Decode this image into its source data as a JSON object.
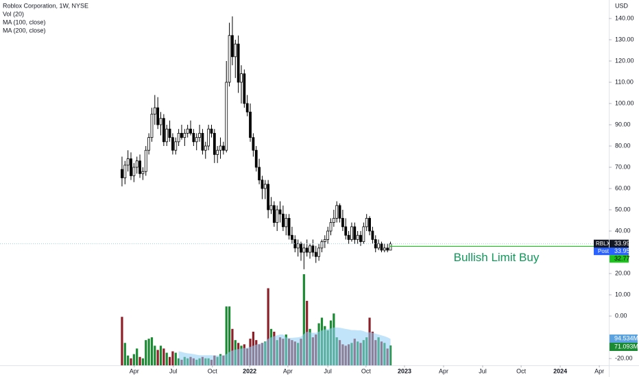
{
  "chart_data": {
    "type": "candlestick",
    "title": "Roblox Corporation, 1W, NYSE",
    "indicators": [
      "Vol (20)",
      "MA (100, close)",
      "MA (200, close)"
    ],
    "currency": "USD",
    "open": [
      69,
      65,
      71,
      74,
      66,
      70,
      73,
      67,
      68,
      78,
      84,
      95,
      98,
      90,
      93,
      82,
      88,
      84,
      78,
      82,
      86,
      84,
      86,
      88,
      86,
      82,
      84,
      86,
      78,
      80,
      88,
      86,
      76,
      78,
      80,
      78,
      110,
      132,
      122,
      128,
      110,
      114,
      100,
      96,
      84,
      78,
      70,
      64,
      60,
      62,
      50,
      52,
      44,
      50,
      48,
      42,
      46,
      38,
      36,
      32,
      34,
      30,
      32,
      30,
      33,
      30,
      28,
      32,
      35,
      36,
      40,
      44,
      46,
      52,
      46,
      42,
      38,
      36,
      42,
      36,
      38,
      35,
      42,
      46,
      40,
      36,
      32,
      34,
      31,
      32,
      31
    ],
    "high": [
      75,
      73,
      78,
      77,
      72,
      75,
      76,
      70,
      80,
      86,
      98,
      104,
      103,
      96,
      95,
      90,
      92,
      86,
      84,
      88,
      90,
      88,
      90,
      92,
      88,
      86,
      90,
      88,
      82,
      90,
      90,
      88,
      80,
      84,
      82,
      120,
      138,
      141,
      130,
      132,
      118,
      116,
      104,
      100,
      86,
      80,
      74,
      66,
      64,
      64,
      56,
      54,
      52,
      54,
      52,
      48,
      48,
      42,
      38,
      36,
      35,
      34,
      36,
      34,
      36,
      33,
      34,
      36,
      38,
      42,
      46,
      50,
      54,
      53,
      50,
      46,
      40,
      44,
      44,
      40,
      40,
      44,
      48,
      47,
      42,
      38,
      36,
      35,
      34,
      34,
      35
    ],
    "low": [
      61,
      62,
      68,
      64,
      63,
      67,
      65,
      64,
      66,
      76,
      82,
      90,
      88,
      85,
      80,
      80,
      82,
      76,
      76,
      80,
      83,
      80,
      84,
      85,
      80,
      78,
      82,
      76,
      74,
      78,
      84,
      72,
      72,
      74,
      76,
      77,
      108,
      118,
      112,
      105,
      100,
      98,
      94,
      82,
      75,
      68,
      62,
      55,
      55,
      46,
      48,
      42,
      40,
      44,
      40,
      38,
      36,
      34,
      30,
      28,
      26,
      22,
      28,
      27,
      28,
      25,
      26,
      30,
      32,
      34,
      38,
      42,
      44,
      44,
      40,
      36,
      34,
      35,
      34,
      34,
      33,
      34,
      40,
      38,
      34,
      30,
      31,
      30,
      30,
      30,
      31
    ],
    "close": [
      65,
      71,
      74,
      66,
      70,
      73,
      67,
      68,
      78,
      84,
      95,
      98,
      90,
      93,
      82,
      88,
      84,
      78,
      82,
      86,
      84,
      86,
      88,
      86,
      82,
      84,
      86,
      78,
      80,
      88,
      86,
      76,
      78,
      80,
      78,
      110,
      132,
      122,
      128,
      110,
      114,
      100,
      96,
      84,
      78,
      70,
      64,
      60,
      62,
      50,
      52,
      44,
      50,
      48,
      42,
      46,
      38,
      36,
      32,
      34,
      30,
      32,
      30,
      33,
      30,
      28,
      32,
      35,
      36,
      40,
      44,
      46,
      52,
      46,
      42,
      38,
      36,
      42,
      36,
      38,
      35,
      42,
      46,
      40,
      36,
      32,
      34,
      31,
      32,
      31,
      33.99
    ],
    "volume": [
      173,
      80,
      35,
      25,
      40,
      60,
      30,
      25,
      90,
      95,
      100,
      70,
      55,
      70,
      60,
      45,
      30,
      50,
      45,
      25,
      20,
      30,
      25,
      30,
      25,
      20,
      25,
      30,
      25,
      25,
      20,
      35,
      30,
      40,
      35,
      210,
      210,
      130,
      90,
      80,
      70,
      75,
      60,
      95,
      120,
      90,
      75,
      80,
      85,
      275,
      130,
      120,
      90,
      100,
      95,
      110,
      95,
      90,
      85,
      80,
      95,
      325,
      230,
      130,
      100,
      110,
      150,
      170,
      140,
      125,
      160,
      185,
      100,
      90,
      75,
      70,
      75,
      80,
      95,
      85,
      80,
      90,
      100,
      170,
      120,
      90,
      100,
      85,
      80,
      60,
      71.093
    ],
    "volume_ma": [
      null,
      null,
      null,
      null,
      null,
      null,
      null,
      null,
      null,
      null,
      null,
      null,
      null,
      null,
      null,
      null,
      null,
      null,
      null,
      50,
      48,
      45,
      43,
      42,
      40,
      38,
      36,
      36,
      36,
      36,
      36,
      35,
      35,
      35,
      35,
      40,
      48,
      53,
      56,
      58,
      60,
      62,
      63,
      66,
      70,
      74,
      77,
      80,
      83,
      95,
      100,
      104,
      107,
      110,
      110,
      100,
      98,
      98,
      99,
      100,
      102,
      112,
      120,
      118,
      116,
      116,
      120,
      125,
      128,
      130,
      132,
      135,
      135,
      134,
      132,
      130,
      128,
      126,
      126,
      125,
      125,
      122,
      118,
      118,
      117,
      113,
      110,
      107,
      104,
      100,
      94.534
    ],
    "volume_value_labels": {
      "volume": "71.093M",
      "volume_ma": "94.534M"
    },
    "volume_ylim": [
      0,
      330
    ],
    "up_color": "#ffffff",
    "down_color": "#000000",
    "volume_up_color": "#1a8a33",
    "volume_down_color": "#8c1f28",
    "volume_ma_color": "#8fcdf5",
    "symbol": "RBLX",
    "post_market": {
      "label": "Post",
      "value": 33.95
    },
    "limit_line": {
      "label": "Bullish Limit Buy",
      "value": 32.77,
      "color": "#1ec41e"
    },
    "xlim": [
      -40.9,
      163.2
    ],
    "xticks": [
      {
        "value": 4.1,
        "label": "Apr"
      },
      {
        "value": 17.2,
        "label": "Jul"
      },
      {
        "value": 30.3,
        "label": "Oct"
      },
      {
        "value": 42.8,
        "label": "2022"
      },
      {
        "value": 55.6,
        "label": "Apr"
      },
      {
        "value": 69,
        "label": "Jul"
      },
      {
        "value": 81.8,
        "label": "Oct"
      },
      {
        "value": 94.7,
        "label": "2023"
      },
      {
        "value": 107.8,
        "label": "Apr"
      },
      {
        "value": 120.9,
        "label": "Jul"
      },
      {
        "value": 133.8,
        "label": "Oct"
      },
      {
        "value": 146.9,
        "label": "2024"
      },
      {
        "value": 160,
        "label": "Apr"
      }
    ],
    "ylim": [
      -23.2,
      148.7
    ],
    "yticks": [
      {
        "value": 140,
        "label": "140.00"
      },
      {
        "value": 130,
        "label": "130.00"
      },
      {
        "value": 120,
        "label": "120.00"
      },
      {
        "value": 110,
        "label": "110.00"
      },
      {
        "value": 100,
        "label": "100.00"
      },
      {
        "value": 90,
        "label": "90.00"
      },
      {
        "value": 80,
        "label": "80.00"
      },
      {
        "value": 70,
        "label": "70.00"
      },
      {
        "value": 60,
        "label": "60.00"
      },
      {
        "value": 50,
        "label": "50.00"
      },
      {
        "value": 40,
        "label": "40.00"
      },
      {
        "value": 20,
        "label": "20.00"
      },
      {
        "value": 10,
        "label": "10.00"
      },
      {
        "value": 0,
        "label": "0.00"
      },
      {
        "value": -20,
        "label": "-20.00"
      }
    ]
  }
}
